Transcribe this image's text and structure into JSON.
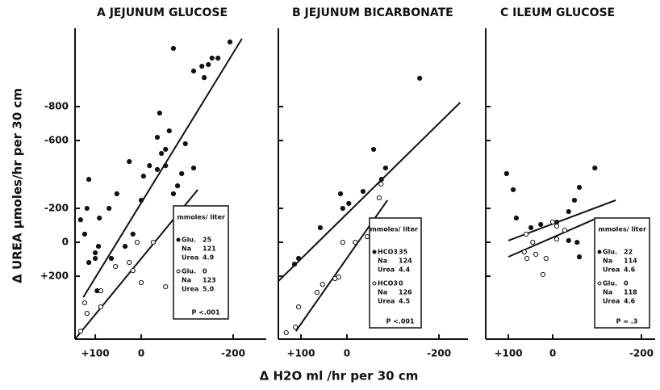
{
  "figure": {
    "y_label": "Δ UREA μmoles/hr per 30 cm",
    "x_label": "Δ H2O ml /hr per 30 cm"
  },
  "chart_data": [
    {
      "type": "scatter",
      "title": "A JEJUNUM GLUCOSE",
      "xlim": [
        144,
        -272
      ],
      "ylim": [
        571,
        -1262
      ],
      "xticks": [
        {
          "value": 100,
          "label": "+100"
        },
        0,
        -200
      ],
      "yticks": [
        -800,
        -600,
        -200,
        0,
        {
          "value": 200,
          "label": "+200"
        }
      ],
      "ytick_labels": true,
      "legend_title": "mmoles/ liter",
      "p_value": "P <.001",
      "series": [
        {
          "marker": "filled",
          "color": "#111111",
          "legend": [
            [
              "Glu.",
              "25"
            ],
            [
              "Na",
              "121"
            ],
            [
              "Urea",
              "4.9"
            ]
          ],
          "x": [
            -70,
            -193,
            -154,
            -167,
            -146,
            -132,
            -137,
            -114,
            -40,
            -61,
            -35,
            -96,
            -53,
            -44,
            -53,
            -35,
            -18,
            -5,
            26,
            0,
            53,
            -114,
            -88,
            -70,
            -79,
            70,
            114,
            118,
            91,
            132,
            123,
            93,
            100,
            114,
            100,
            65,
            18,
            96,
            35
          ],
          "values": [
            -1143,
            -1181,
            -1086,
            -1086,
            -1048,
            -1038,
            -971,
            -1010,
            -762,
            -657,
            -619,
            -581,
            -548,
            -524,
            -452,
            -429,
            -452,
            -390,
            -476,
            -248,
            -286,
            -438,
            -405,
            -286,
            -333,
            -200,
            -371,
            -200,
            -143,
            -133,
            -48,
            24,
            62,
            119,
            95,
            95,
            -48,
            286,
            24
          ]
        },
        {
          "marker": "open",
          "color": "#111111",
          "legend": [
            [
              "Glu.",
              "0"
            ],
            [
              "Na",
              "123"
            ],
            [
              "Urea",
              "5.0"
            ]
          ],
          "x": [
            9,
            -26,
            26,
            18,
            0,
            56,
            88,
            123,
            118,
            132,
            88,
            -114,
            -53
          ],
          "values": [
            0,
            0,
            119,
            167,
            238,
            143,
            381,
            357,
            419,
            524,
            286,
            -167,
            262
          ]
        }
      ],
      "lines": [
        {
          "x": [
            126,
            -219
          ],
          "y": [
            324,
            -1200
          ]
        },
        {
          "x": [
            144,
            -123
          ],
          "y": [
            571,
            -310
          ]
        }
      ]
    },
    {
      "type": "scatter",
      "title": "B JEJUNUM BICARBONATE",
      "xlim": [
        149,
        -263
      ],
      "ylim": [
        571,
        -1262
      ],
      "xticks": [
        {
          "value": 100,
          "label": "+100"
        },
        0,
        -200
      ],
      "yticks": [
        -800,
        -600,
        -200,
        0,
        200
      ],
      "ytick_labels": false,
      "legend_title": "mmoles/ liter",
      "p_value": "P <.001",
      "series": [
        {
          "marker": "filled",
          "color": "#111111",
          "legend": [
            [
              "HCO3",
              "35"
            ],
            [
              "Na",
              "124"
            ],
            [
              "Urea",
              "4.4"
            ]
          ],
          "x": [
            -158,
            -58,
            -84,
            -75,
            -35,
            -4,
            9,
            14,
            58,
            105,
            114
          ],
          "values": [
            -967,
            -548,
            -438,
            -371,
            -300,
            -229,
            -200,
            -286,
            -86,
            95,
            129
          ]
        },
        {
          "marker": "open",
          "color": "#111111",
          "legend": [
            [
              "HCO3",
              "0"
            ],
            [
              "Na",
              "126"
            ],
            [
              "Urea",
              "4.5"
            ]
          ],
          "x": [
            -74,
            -70,
            -44,
            -18,
            9,
            18,
            26,
            53,
            65,
            105,
            112,
            132
          ],
          "values": [
            -343,
            -262,
            -33,
            0,
            0,
            205,
            214,
            248,
            295,
            381,
            500,
            533
          ]
        }
      ],
      "lines": [
        {
          "x": [
            149,
            -246
          ],
          "y": [
            229,
            -824
          ]
        },
        {
          "x": [
            111,
            -88
          ],
          "y": [
            524,
            -248
          ]
        }
      ]
    },
    {
      "type": "scatter",
      "title": "C ILEUM GLUCOSE",
      "xlim": [
        151,
        -231
      ],
      "ylim": [
        571,
        -1262
      ],
      "xticks": [
        {
          "value": 100,
          "label": "+100"
        },
        0,
        -200
      ],
      "yticks": [
        -800,
        -600,
        -200,
        0,
        200
      ],
      "ytick_labels": false,
      "legend_title": "mmoles/ liter",
      "p_value": "P = .3",
      "series": [
        {
          "marker": "filled",
          "color": "#111111",
          "legend": [
            [
              "Glu.",
              "22"
            ],
            [
              "Na",
              "114"
            ],
            [
              "Urea",
              "4.6"
            ]
          ],
          "x": [
            104,
            89,
            82,
            49,
            27,
            -9,
            -36,
            -49,
            -60,
            -95,
            -55,
            -60,
            -36
          ],
          "values": [
            -405,
            -310,
            -143,
            -86,
            -105,
            -119,
            -181,
            -248,
            -324,
            -438,
            0,
            86,
            -10
          ]
        },
        {
          "marker": "open",
          "color": "#111111",
          "legend": [
            [
              "Glu.",
              "0"
            ],
            [
              "Na",
              "118"
            ],
            [
              "Urea",
              "4.6"
            ]
          ],
          "x": [
            60,
            45,
            64,
            38,
            15,
            22,
            -9,
            -27,
            0,
            58,
            -9
          ],
          "values": [
            -48,
            0,
            57,
            71,
            95,
            190,
            -19,
            -71,
            -119,
            95,
            -95
          ]
        }
      ],
      "lines": [
        {
          "x": [
            100,
            -142
          ],
          "y": [
            -10,
            -248
          ]
        },
        {
          "x": [
            100,
            -100
          ],
          "y": [
            86,
            -143
          ]
        }
      ]
    }
  ]
}
